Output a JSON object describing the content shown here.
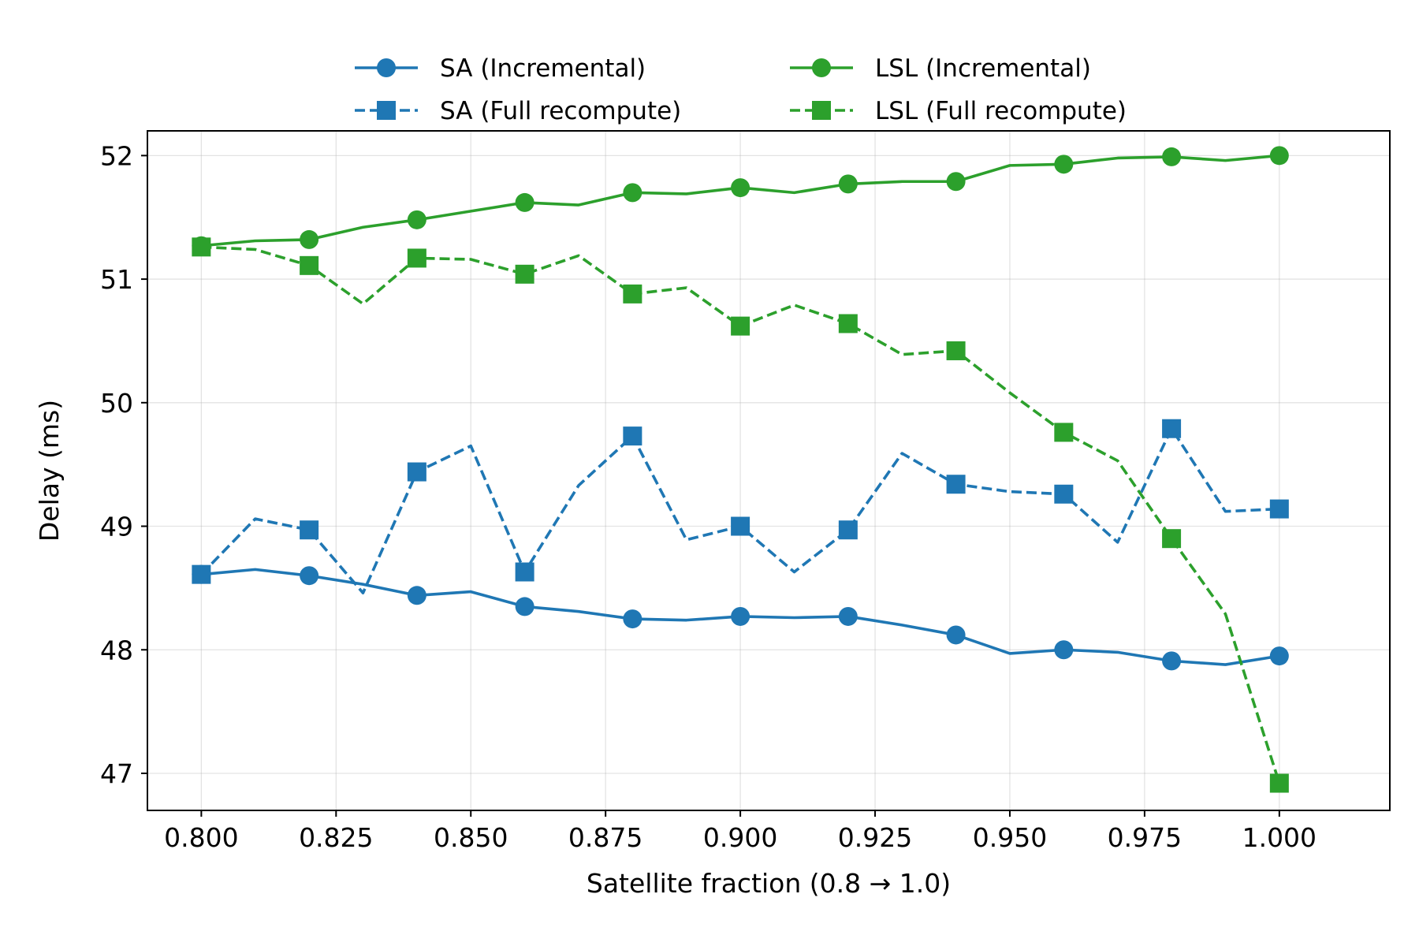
{
  "chart_data": {
    "type": "line",
    "title": "",
    "xlabel": "Satellite fraction (0.8 → 1.0)",
    "ylabel": "Delay (ms)",
    "xlim": [
      0.79,
      1.0205
    ],
    "ylim": [
      46.7,
      52.2
    ],
    "grid": true,
    "legend_position": "top-center",
    "x": [
      0.8,
      0.81,
      0.82,
      0.83,
      0.84,
      0.85,
      0.86,
      0.87,
      0.88,
      0.89,
      0.9,
      0.91,
      0.92,
      0.93,
      0.94,
      0.95,
      0.96,
      0.97,
      0.98,
      0.99,
      1.0
    ],
    "x_ticks": [
      0.8,
      0.825,
      0.85,
      0.875,
      0.9,
      0.925,
      0.95,
      0.975,
      1.0
    ],
    "x_tick_labels": [
      "0.800",
      "0.825",
      "0.850",
      "0.875",
      "0.900",
      "0.925",
      "0.950",
      "0.975",
      "1.000"
    ],
    "y_ticks": [
      47,
      48,
      49,
      50,
      51,
      52
    ],
    "y_tick_labels": [
      "47",
      "48",
      "49",
      "50",
      "51",
      "52"
    ],
    "series": [
      {
        "name": "SA (Incremental)",
        "color": "#1f77b4",
        "linestyle": "solid",
        "marker": "circle",
        "marker_every": 2,
        "values": [
          48.61,
          48.65,
          48.6,
          48.53,
          48.44,
          48.47,
          48.35,
          48.31,
          48.25,
          48.24,
          48.27,
          48.26,
          48.27,
          48.2,
          48.12,
          47.97,
          48.0,
          47.98,
          47.91,
          47.88,
          47.95
        ]
      },
      {
        "name": "SA (Full recompute)",
        "color": "#1f77b4",
        "linestyle": "dashed",
        "marker": "square",
        "marker_every": 2,
        "values": [
          48.61,
          49.06,
          48.97,
          48.46,
          49.44,
          49.65,
          48.63,
          49.33,
          49.73,
          48.89,
          49.0,
          48.63,
          48.97,
          49.59,
          49.34,
          49.28,
          49.26,
          48.87,
          49.79,
          49.12,
          49.14
        ]
      },
      {
        "name": "LSL (Incremental)",
        "color": "#2ca02c",
        "linestyle": "solid",
        "marker": "circle",
        "marker_every": 2,
        "values": [
          51.27,
          51.31,
          51.32,
          51.42,
          51.48,
          51.55,
          51.62,
          51.6,
          51.7,
          51.69,
          51.74,
          51.7,
          51.77,
          51.79,
          51.79,
          51.92,
          51.93,
          51.98,
          51.99,
          51.96,
          52.0
        ]
      },
      {
        "name": "LSL (Full recompute)",
        "color": "#2ca02c",
        "linestyle": "dashed",
        "marker": "square",
        "marker_every": 2,
        "values": [
          51.26,
          51.24,
          51.11,
          50.8,
          51.17,
          51.16,
          51.04,
          51.19,
          50.88,
          50.93,
          50.62,
          50.79,
          50.64,
          50.39,
          50.42,
          50.08,
          49.76,
          49.53,
          48.9,
          48.29,
          46.92
        ]
      }
    ]
  }
}
